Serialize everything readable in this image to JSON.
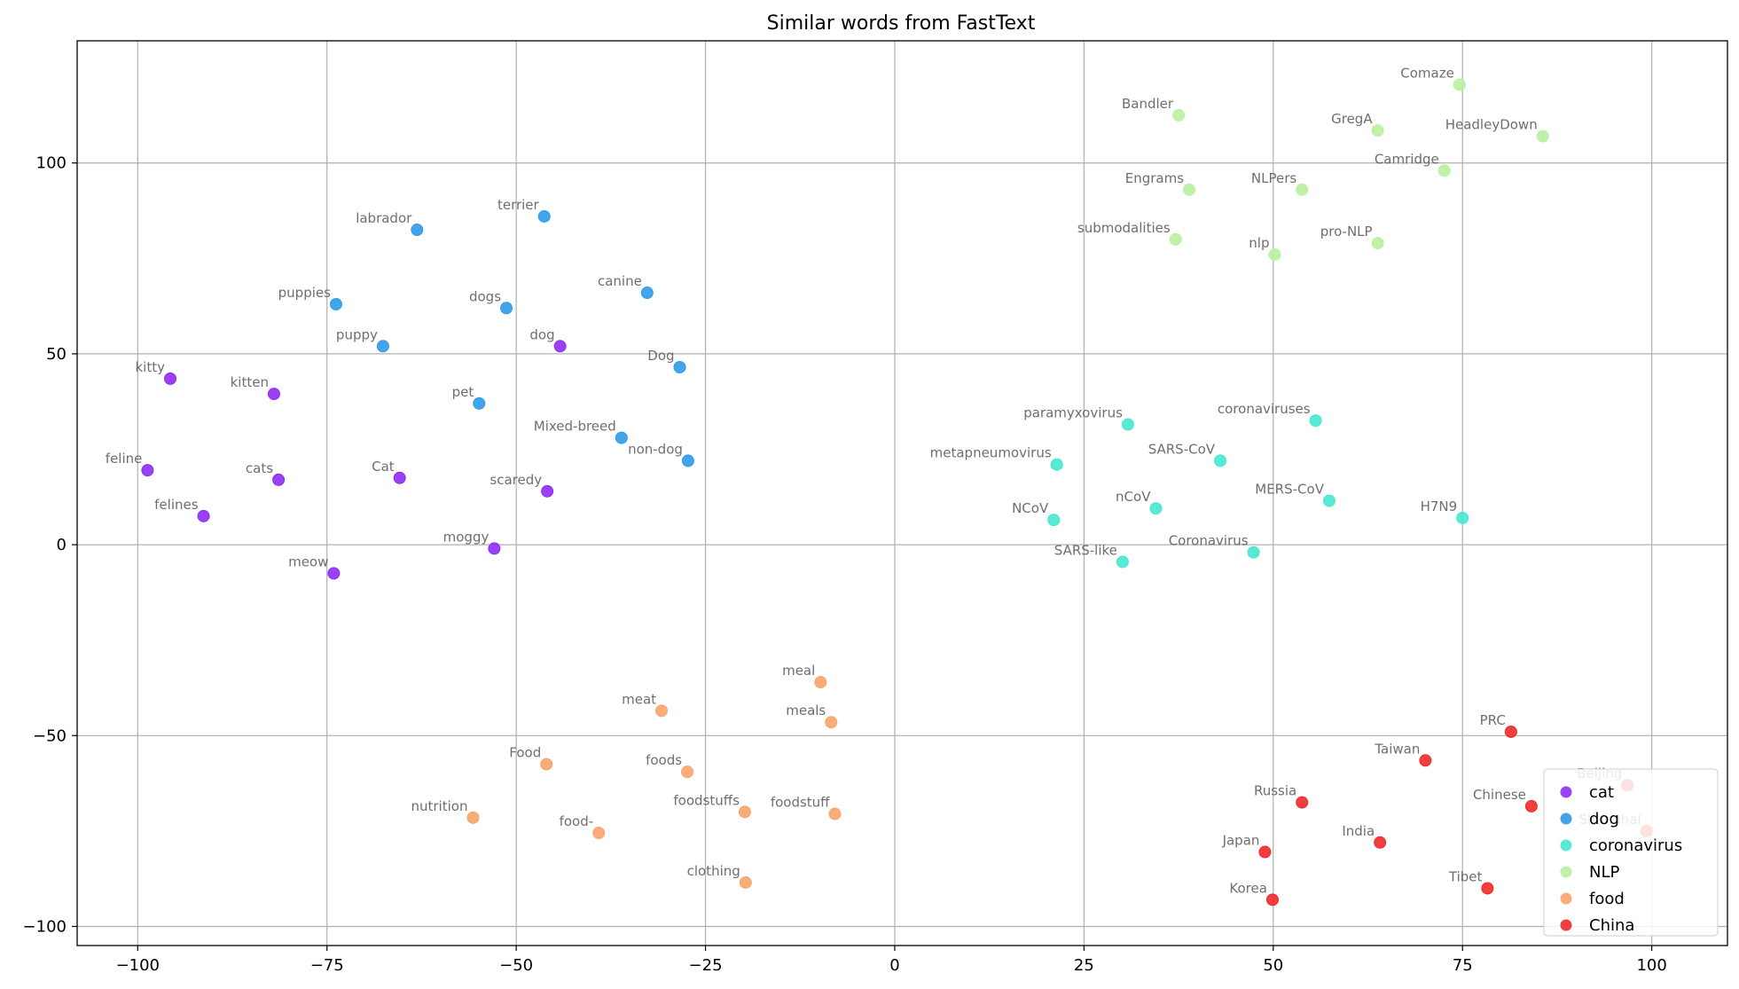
{
  "chart_data": {
    "type": "scatter",
    "title": "Similar words from FastText",
    "xlabel": "",
    "ylabel": "",
    "xlim": [
      -108,
      110
    ],
    "ylim": [
      -105,
      132
    ],
    "xticks": [
      -100,
      -75,
      -50,
      -25,
      0,
      25,
      50,
      75,
      100
    ],
    "xtick_labels": [
      "−100",
      "−75",
      "−50",
      "−25",
      "0",
      "25",
      "50",
      "75",
      "100"
    ],
    "yticks": [
      -100,
      -50,
      0,
      50,
      100
    ],
    "ytick_labels": [
      "−100",
      "−50",
      "0",
      "50",
      "100"
    ],
    "grid": true,
    "legend_position": "lower-right",
    "series": [
      {
        "name": "cat",
        "color": "#8f2cf5",
        "points": [
          {
            "label": "kitty",
            "x": -95.7,
            "y": 43.5
          },
          {
            "label": "kitten",
            "x": -82.0,
            "y": 39.5
          },
          {
            "label": "feline",
            "x": -98.7,
            "y": 19.5
          },
          {
            "label": "cats",
            "x": -81.4,
            "y": 17.0
          },
          {
            "label": "Cat",
            "x": -65.4,
            "y": 17.5
          },
          {
            "label": "felines",
            "x": -91.3,
            "y": 7.5
          },
          {
            "label": "meow",
            "x": -74.1,
            "y": -7.5
          },
          {
            "label": "moggy",
            "x": -52.9,
            "y": -1.0
          },
          {
            "label": "scaredy",
            "x": -45.9,
            "y": 14.0
          },
          {
            "label": "dog",
            "x": -44.2,
            "y": 52.0
          }
        ]
      },
      {
        "name": "dog",
        "color": "#2e9be8",
        "points": [
          {
            "label": "labrador",
            "x": -63.1,
            "y": 82.5
          },
          {
            "label": "terrier",
            "x": -46.3,
            "y": 86.0
          },
          {
            "label": "canine",
            "x": -32.7,
            "y": 66.0
          },
          {
            "label": "puppies",
            "x": -73.8,
            "y": 63.0
          },
          {
            "label": "dogs",
            "x": -51.3,
            "y": 62.0
          },
          {
            "label": "puppy",
            "x": -67.6,
            "y": 52.0
          },
          {
            "label": "Dog",
            "x": -28.4,
            "y": 46.5
          },
          {
            "label": "pet",
            "x": -54.9,
            "y": 37.0
          },
          {
            "label": "Mixed-breed",
            "x": -36.1,
            "y": 28.0
          },
          {
            "label": "non-dog",
            "x": -27.3,
            "y": 22.0
          }
        ]
      },
      {
        "name": "coronavirus",
        "color": "#45e8cf",
        "points": [
          {
            "label": "paramyxovirus",
            "x": 30.8,
            "y": 31.5
          },
          {
            "label": "coronaviruses",
            "x": 55.6,
            "y": 32.5
          },
          {
            "label": "metapneumovirus",
            "x": 21.4,
            "y": 21.0
          },
          {
            "label": "SARS-CoV",
            "x": 43.0,
            "y": 22.0
          },
          {
            "label": "nCoV",
            "x": 34.5,
            "y": 9.5
          },
          {
            "label": "MERS-CoV",
            "x": 57.4,
            "y": 11.5
          },
          {
            "label": "NCoV",
            "x": 21.0,
            "y": 6.5
          },
          {
            "label": "H7N9",
            "x": 75.0,
            "y": 7.0
          },
          {
            "label": "SARS-like",
            "x": 30.1,
            "y": -4.5
          },
          {
            "label": "Coronavirus",
            "x": 47.4,
            "y": -2.0
          }
        ]
      },
      {
        "name": "NLP",
        "color": "#b9f0a0",
        "points": [
          {
            "label": "Bandler",
            "x": 37.5,
            "y": 112.5
          },
          {
            "label": "Comaze",
            "x": 74.6,
            "y": 120.5
          },
          {
            "label": "GregA",
            "x": 63.8,
            "y": 108.5
          },
          {
            "label": "HeadleyDown",
            "x": 85.6,
            "y": 107.0
          },
          {
            "label": "Engrams",
            "x": 38.9,
            "y": 93.0
          },
          {
            "label": "NLPers",
            "x": 53.8,
            "y": 93.0
          },
          {
            "label": "Camridge",
            "x": 72.6,
            "y": 98.0
          },
          {
            "label": "submodalities",
            "x": 37.1,
            "y": 80.0
          },
          {
            "label": "nlp",
            "x": 50.2,
            "y": 76.0
          },
          {
            "label": "pro-NLP",
            "x": 63.8,
            "y": 79.0
          }
        ]
      },
      {
        "name": "food",
        "color": "#f7a46a",
        "points": [
          {
            "label": "meal",
            "x": -9.8,
            "y": -36.0
          },
          {
            "label": "meat",
            "x": -30.8,
            "y": -43.5
          },
          {
            "label": "meals",
            "x": -8.4,
            "y": -46.5
          },
          {
            "label": "Food",
            "x": -46.0,
            "y": -57.5
          },
          {
            "label": "foods",
            "x": -27.4,
            "y": -59.5
          },
          {
            "label": "nutrition",
            "x": -55.7,
            "y": -71.5
          },
          {
            "label": "foodstuffs",
            "x": -19.8,
            "y": -70.0
          },
          {
            "label": "foodstuff",
            "x": -7.9,
            "y": -70.5
          },
          {
            "label": "food-",
            "x": -39.1,
            "y": -75.5
          },
          {
            "label": "clothing",
            "x": -19.7,
            "y": -88.5
          }
        ]
      },
      {
        "name": "China",
        "color": "#f02a2a",
        "points": [
          {
            "label": "PRC",
            "x": 81.4,
            "y": -49.0
          },
          {
            "label": "Taiwan",
            "x": 70.1,
            "y": -56.5
          },
          {
            "label": "Beijing",
            "x": 96.8,
            "y": -63.0
          },
          {
            "label": "Russia",
            "x": 53.8,
            "y": -67.5
          },
          {
            "label": "Chinese",
            "x": 84.1,
            "y": -68.5
          },
          {
            "label": "Shanghai",
            "x": 99.3,
            "y": -75.0
          },
          {
            "label": "India",
            "x": 64.1,
            "y": -78.0
          },
          {
            "label": "Japan",
            "x": 48.9,
            "y": -80.5
          },
          {
            "label": "Tibet",
            "x": 78.3,
            "y": -90.0
          },
          {
            "label": "Korea",
            "x": 49.9,
            "y": -93.0
          }
        ]
      }
    ]
  }
}
